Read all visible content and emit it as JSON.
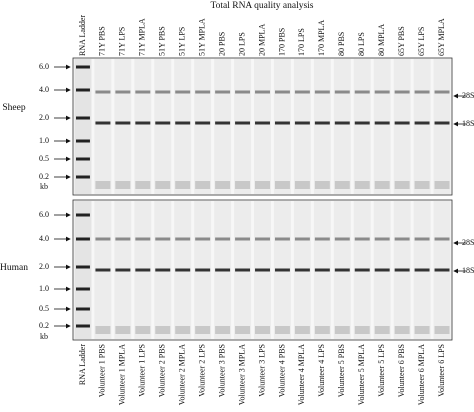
{
  "title": "Total RNA quality analysis",
  "panels": [
    {
      "label": "Sheep",
      "lanes": [
        "RNA Ladder",
        "71Y PBS",
        "71Y LPS",
        "71Y MPLA",
        "51Y PBS",
        "51Y LPS",
        "51Y MPLA",
        "20 PBS",
        "20 LPS",
        "20 MPLA",
        "170 PBS",
        "170 LPS",
        "170 MPLA",
        "80 PBS",
        "80 LPS",
        "80 MPLA",
        "65Y PBS",
        "65Y LPS",
        "65Y MPLA"
      ],
      "ladder": [
        "6.0",
        "4.0",
        "2.0",
        "1.0",
        "0.5",
        "0.2",
        "kb"
      ],
      "markers": [
        "28S",
        "18S"
      ]
    },
    {
      "label": "Human",
      "lanes": [
        "RNA Ladder",
        "Volunteer 1 PBS",
        "Volunteer 1 MPLA",
        "Volunteer 1 LPS",
        "Volunteer 2 PBS",
        "Volunteer 2 MPLA",
        "Volunteer 2 LPS",
        "Volunteer 3 PBS",
        "Volunteer 3 MPLA",
        "Volunteer 3 LPS",
        "Volunteer 4 PBS",
        "Volunteer 4 MPLA",
        "Volunteer 4 LPS",
        "Volunteer 5 PBS",
        "Volunteer 5 MPLA",
        "Volunteer 5 LPS",
        "Volunteer 6 PBS",
        "Volunteer 6 MPLA",
        "Volunteer 6 LPS"
      ],
      "ladder": [
        "6.0",
        "4.0",
        "2.0",
        "1.0",
        "0.5",
        "0.2",
        "kb"
      ],
      "markers": [
        "28S",
        "18S"
      ]
    }
  ]
}
